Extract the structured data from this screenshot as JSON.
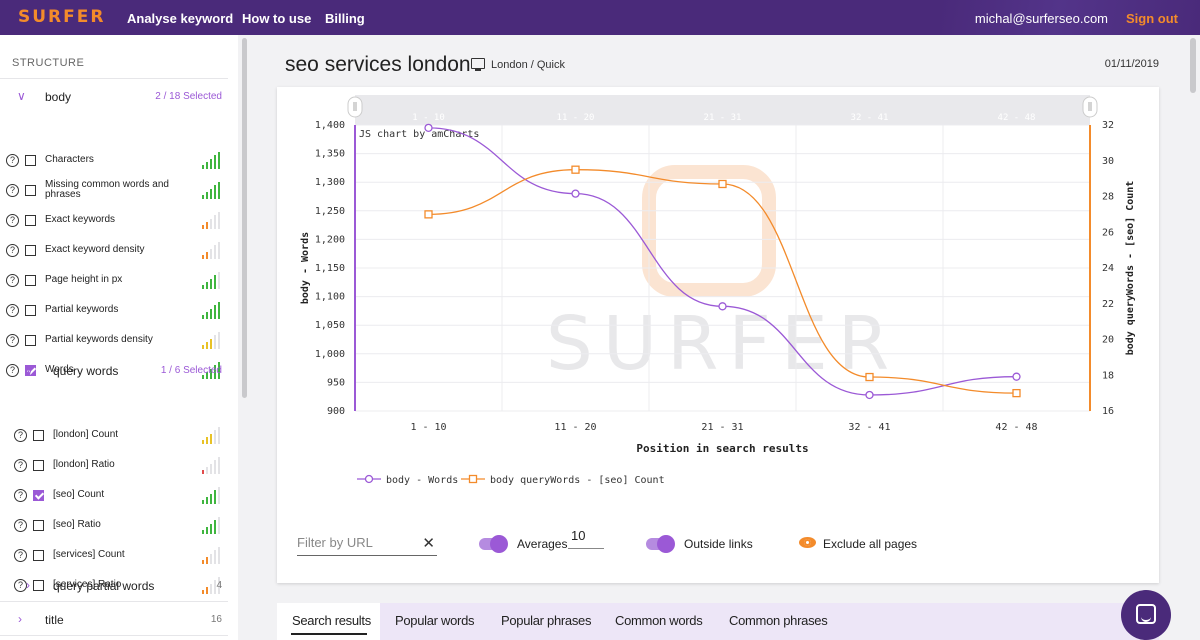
{
  "topbar": {
    "logo": "SURFER",
    "nav": [
      "Analyse keyword",
      "How to use",
      "Billing"
    ],
    "email": "michal@surferseo.com",
    "signout": "Sign out"
  },
  "sidebar": {
    "heading": "STRUCTURE",
    "groups": {
      "body": {
        "name": "body",
        "count": "2 / 18 Selected"
      },
      "query_words": {
        "name": "query words",
        "count": "1 / 6 Selected"
      },
      "query_partial_words": {
        "name": "query partial words",
        "count": "4"
      },
      "title": {
        "name": "title",
        "count": "16"
      }
    },
    "body_items": [
      {
        "label": "Characters",
        "checked": false,
        "level": 5,
        "color": "#3fb53f"
      },
      {
        "label": "Missing common words and phrases",
        "checked": false,
        "level": 5,
        "color": "#3fb53f"
      },
      {
        "label": "Exact keywords",
        "checked": false,
        "level": 2,
        "color": "#f38b2b"
      },
      {
        "label": "Exact keyword density",
        "checked": false,
        "level": 2,
        "color": "#f38b2b"
      },
      {
        "label": "Page height in px",
        "checked": false,
        "level": 4,
        "color": "#3fb53f"
      },
      {
        "label": "Partial keywords",
        "checked": false,
        "level": 5,
        "color": "#3fb53f"
      },
      {
        "label": "Partial keywords density",
        "checked": false,
        "level": 3,
        "color": "#e8c227"
      },
      {
        "label": "Words",
        "checked": true,
        "level": 5,
        "color": "#3fb53f"
      }
    ],
    "query_items": [
      {
        "label": "[london] Count",
        "checked": false,
        "level": 3,
        "color": "#e8c227"
      },
      {
        "label": "[london] Ratio",
        "checked": false,
        "level": 1,
        "color": "#e14b4b"
      },
      {
        "label": "[seo] Count",
        "checked": true,
        "level": 4,
        "color": "#3fb53f"
      },
      {
        "label": "[seo] Ratio",
        "checked": false,
        "level": 4,
        "color": "#3fb53f"
      },
      {
        "label": "[services] Count",
        "checked": false,
        "level": 2,
        "color": "#f38b2b"
      },
      {
        "label": "[services] Ratio",
        "checked": false,
        "level": 2,
        "color": "#f38b2b"
      }
    ]
  },
  "main": {
    "title": "seo services london",
    "location": "London / Quick",
    "date": "01/11/2019"
  },
  "chart_data": {
    "type": "line",
    "categories": [
      "1 - 10",
      "11 - 20",
      "21 - 31",
      "32 - 41",
      "42 - 48"
    ],
    "series": [
      {
        "name": "body - Words",
        "axis": "left",
        "color": "#9b59d6",
        "marker": "circle",
        "values": [
          1395,
          1280,
          1083,
          928,
          960
        ]
      },
      {
        "name": "body queryWords - [seo] Count",
        "axis": "right",
        "color": "#f38b2b",
        "marker": "square",
        "values": [
          27,
          29.5,
          28.7,
          17.9,
          17
        ]
      }
    ],
    "xlabel": "Position in search results",
    "ylabel_left": "body - Words",
    "ylabel_right": "body queryWords - [seo] Count",
    "left_ticks": [
      "1,400",
      "1,350",
      "1,300",
      "1,250",
      "1,200",
      "1,150",
      "1,100",
      "1,050",
      "1,000",
      "950",
      "900"
    ],
    "right_ticks": [
      "32",
      "30",
      "28",
      "26",
      "24",
      "22",
      "20",
      "18",
      "16"
    ],
    "ylim_left": [
      900,
      1400
    ],
    "ylim_right": [
      16,
      32
    ],
    "watermark": "SURFER",
    "credit": "JS chart by amCharts",
    "scrollbar_labels": [
      "1 - 10",
      "11 - 20",
      "21 - 31",
      "32 - 41",
      "42 - 48"
    ],
    "legend_position": "bottom"
  },
  "controls": {
    "filter_placeholder": "Filter by URL",
    "averages_label": "Averages",
    "averages_value": "10",
    "outside_links_label": "Outside links",
    "exclude_label": "Exclude all pages"
  },
  "tabs": [
    "Search results",
    "Popular words",
    "Popular phrases",
    "Common words",
    "Common phrases"
  ]
}
